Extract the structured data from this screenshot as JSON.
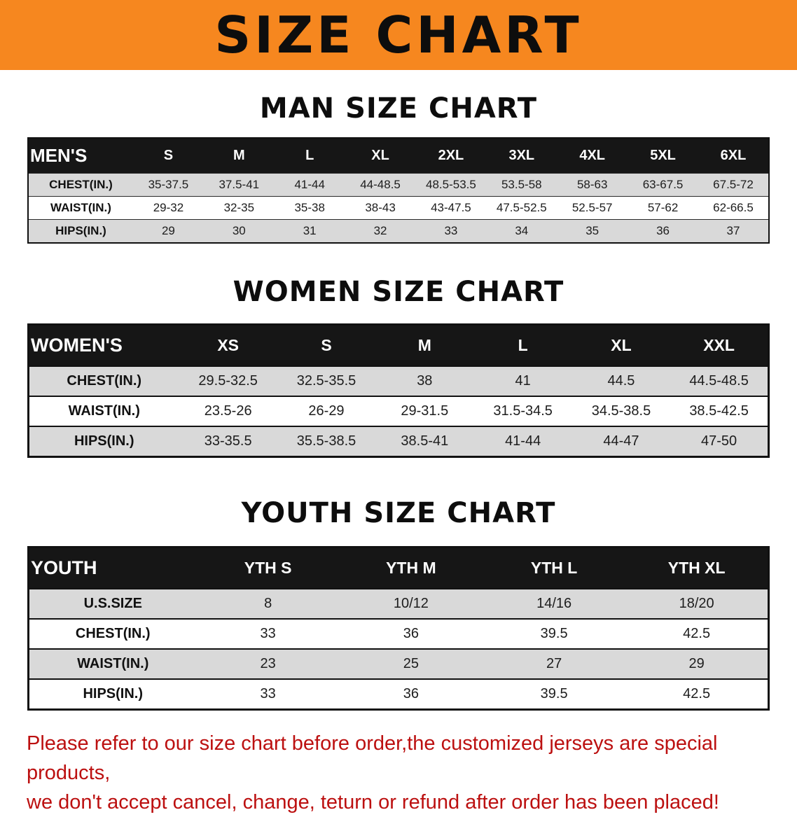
{
  "banner": {
    "title": "SIZE CHART"
  },
  "colors": {
    "banner_bg": "#f6871f",
    "header_bg": "#161616",
    "row_alt": "#d9d9d9",
    "note_red": "#bc1010",
    "border_color": "#111111"
  },
  "tables": {
    "men": {
      "heading": "MAN SIZE CHART",
      "corner": "MEN'S",
      "columns": [
        "S",
        "M",
        "L",
        "XL",
        "2XL",
        "3XL",
        "4XL",
        "5XL",
        "6XL"
      ],
      "rows": [
        {
          "label": "CHEST(IN.)",
          "values": [
            "35-37.5",
            "37.5-41",
            "41-44",
            "44-48.5",
            "48.5-53.5",
            "53.5-58",
            "58-63",
            "63-67.5",
            "67.5-72"
          ]
        },
        {
          "label": "WAIST(IN.)",
          "values": [
            "29-32",
            "32-35",
            "35-38",
            "38-43",
            "43-47.5",
            "47.5-52.5",
            "52.5-57",
            "57-62",
            "62-66.5"
          ]
        },
        {
          "label": "HIPS(IN.)",
          "values": [
            "29",
            "30",
            "31",
            "32",
            "33",
            "34",
            "35",
            "36",
            "37"
          ]
        }
      ]
    },
    "women": {
      "heading": "WOMEN SIZE CHART",
      "corner": "WOMEN'S",
      "columns": [
        "XS",
        "S",
        "M",
        "L",
        "XL",
        "XXL"
      ],
      "rows": [
        {
          "label": "CHEST(IN.)",
          "values": [
            "29.5-32.5",
            "32.5-35.5",
            "38",
            "41",
            "44.5",
            "44.5-48.5"
          ]
        },
        {
          "label": "WAIST(IN.)",
          "values": [
            "23.5-26",
            "26-29",
            "29-31.5",
            "31.5-34.5",
            "34.5-38.5",
            "38.5-42.5"
          ]
        },
        {
          "label": "HIPS(IN.)",
          "values": [
            "33-35.5",
            "35.5-38.5",
            "38.5-41",
            "41-44",
            "44-47",
            "47-50"
          ]
        }
      ]
    },
    "youth": {
      "heading": "YOUTH SIZE CHART",
      "corner": "YOUTH",
      "columns": [
        "YTH S",
        "YTH M",
        "YTH L",
        "YTH XL"
      ],
      "rows": [
        {
          "label": "U.S.SIZE",
          "values": [
            "8",
            "10/12",
            "14/16",
            "18/20"
          ]
        },
        {
          "label": "CHEST(IN.)",
          "values": [
            "33",
            "36",
            "39.5",
            "42.5"
          ]
        },
        {
          "label": "WAIST(IN.)",
          "values": [
            "23",
            "25",
            "27",
            "29"
          ]
        },
        {
          "label": "HIPS(IN.)",
          "values": [
            "33",
            "36",
            "39.5",
            "42.5"
          ]
        }
      ]
    }
  },
  "note": {
    "line1": "Please refer to our size chart before order,the customized jerseys are special products,",
    "line2": "we don't accept cancel, change, teturn or refund after order has been placed!"
  }
}
